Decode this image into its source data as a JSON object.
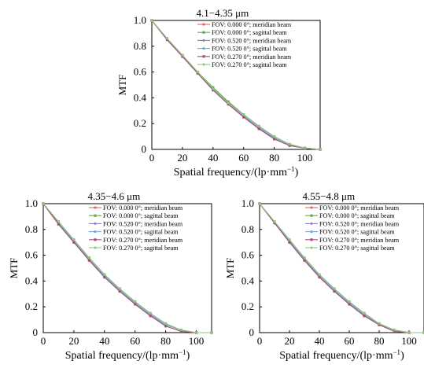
{
  "colors": {
    "series": [
      "#e06666",
      "#6aa84f",
      "#8e7cc3",
      "#6fa8dc",
      "#a64d79",
      "#93c47d"
    ]
  },
  "chart_data": [
    {
      "type": "line",
      "title": "4.1−4.35 μm",
      "xlabel": "Spatial frequency/(lp·mm",
      "xlabel_sup": "−1",
      "xlabel_close": ")",
      "ylabel": "MTF",
      "xlim": [
        0,
        110
      ],
      "ylim": [
        0,
        1.0
      ],
      "xticks": [
        0,
        20,
        40,
        60,
        80,
        100
      ],
      "yticks": [
        0,
        0.2,
        0.4,
        0.6,
        0.8,
        1.0
      ],
      "ytick_labels": [
        "0",
        "0.2",
        "0.4",
        "0.6",
        "0.8",
        "1.0"
      ],
      "legend_position": "top-right",
      "x": [
        0,
        10,
        20,
        30,
        40,
        50,
        60,
        70,
        80,
        90,
        100,
        110
      ],
      "series": [
        {
          "name": "FOV: 0.000 0°; meridian beam",
          "values": [
            1.0,
            0.86,
            0.73,
            0.6,
            0.47,
            0.36,
            0.26,
            0.17,
            0.09,
            0.03,
            0.01,
            0.0
          ]
        },
        {
          "name": "FOV: 0.000 0°; sagittal beam",
          "values": [
            1.0,
            0.86,
            0.73,
            0.6,
            0.48,
            0.37,
            0.27,
            0.18,
            0.1,
            0.04,
            0.01,
            0.0
          ]
        },
        {
          "name": "FOV: 0.520 0°; meridian beam",
          "values": [
            1.0,
            0.85,
            0.72,
            0.59,
            0.46,
            0.35,
            0.25,
            0.16,
            0.09,
            0.03,
            0.01,
            0.0
          ]
        },
        {
          "name": "FOV: 0.520 0°; sagittal beam",
          "values": [
            1.0,
            0.86,
            0.72,
            0.59,
            0.47,
            0.36,
            0.26,
            0.17,
            0.09,
            0.03,
            0.01,
            0.0
          ]
        },
        {
          "name": "FOV: 0.270 0°; meridian beam",
          "values": [
            1.0,
            0.85,
            0.72,
            0.59,
            0.46,
            0.35,
            0.25,
            0.16,
            0.08,
            0.03,
            0.01,
            0.0
          ]
        },
        {
          "name": "FOV: 0.270 0°; sagittal beam",
          "values": [
            1.0,
            0.86,
            0.73,
            0.6,
            0.47,
            0.36,
            0.27,
            0.18,
            0.1,
            0.04,
            0.01,
            0.0
          ]
        }
      ]
    },
    {
      "type": "line",
      "title": "4.35−4.6 μm",
      "xlabel": "Spatial frequency/(lp·mm",
      "xlabel_sup": "−1",
      "xlabel_close": ")",
      "ylabel": "MTF",
      "xlim": [
        0,
        110
      ],
      "ylim": [
        0,
        1.0
      ],
      "xticks": [
        0,
        20,
        40,
        60,
        80,
        100
      ],
      "yticks": [
        0,
        0.2,
        0.4,
        0.6,
        0.8,
        1.0
      ],
      "ytick_labels": [
        "0",
        "0.2",
        "0.4",
        "0.6",
        "0.8",
        "1.0"
      ],
      "legend_position": "top-right",
      "x": [
        0,
        10,
        20,
        30,
        40,
        50,
        60,
        70,
        80,
        90,
        100,
        110
      ],
      "series": [
        {
          "name": "FOV: 0.000 0°; meridian beam",
          "values": [
            1.0,
            0.85,
            0.71,
            0.57,
            0.44,
            0.33,
            0.23,
            0.14,
            0.06,
            0.02,
            0.0,
            0.0
          ]
        },
        {
          "name": "FOV: 0.000 0°; sagittal beam",
          "values": [
            1.0,
            0.86,
            0.72,
            0.58,
            0.45,
            0.34,
            0.24,
            0.15,
            0.07,
            0.02,
            0.0,
            0.0
          ]
        },
        {
          "name": "FOV: 0.520 0°; meridian beam",
          "values": [
            1.0,
            0.84,
            0.7,
            0.56,
            0.43,
            0.32,
            0.22,
            0.13,
            0.06,
            0.02,
            0.0,
            0.0
          ]
        },
        {
          "name": "FOV: 0.520 0°; sagittal beam",
          "values": [
            1.0,
            0.85,
            0.71,
            0.57,
            0.44,
            0.33,
            0.23,
            0.14,
            0.06,
            0.02,
            0.0,
            0.0
          ]
        },
        {
          "name": "FOV: 0.270 0°; meridian beam",
          "values": [
            1.0,
            0.84,
            0.7,
            0.56,
            0.43,
            0.32,
            0.22,
            0.13,
            0.05,
            0.01,
            0.0,
            0.0
          ]
        },
        {
          "name": "FOV: 0.270 0°; sagittal beam",
          "values": [
            1.0,
            0.86,
            0.72,
            0.58,
            0.45,
            0.34,
            0.24,
            0.15,
            0.07,
            0.02,
            0.0,
            0.0
          ]
        }
      ]
    },
    {
      "type": "line",
      "title": "4.55−4.8 μm",
      "xlabel": "Spatial frequency/(lp·mm",
      "xlabel_sup": "−1",
      "xlabel_close": ")",
      "ylabel": "MTF",
      "xlim": [
        0,
        110
      ],
      "ylim": [
        0,
        1.0
      ],
      "xticks": [
        0,
        20,
        40,
        60,
        80,
        100
      ],
      "yticks": [
        0,
        0.2,
        0.4,
        0.6,
        0.8,
        1.0
      ],
      "ytick_labels": [
        "0",
        "0.2",
        "0.4",
        "0.6",
        "0.8",
        "1.0"
      ],
      "legend_position": "top-right",
      "x": [
        0,
        10,
        20,
        30,
        40,
        50,
        60,
        70,
        80,
        90,
        100,
        110
      ],
      "series": [
        {
          "name": "FOV: 0.000 0°; meridian beam",
          "values": [
            1.0,
            0.85,
            0.71,
            0.57,
            0.44,
            0.33,
            0.23,
            0.14,
            0.07,
            0.02,
            0.0,
            0.0
          ]
        },
        {
          "name": "FOV: 0.000 0°; sagittal beam",
          "values": [
            1.0,
            0.86,
            0.72,
            0.58,
            0.45,
            0.34,
            0.24,
            0.15,
            0.07,
            0.02,
            0.0,
            0.0
          ]
        },
        {
          "name": "FOV: 0.520 0°; meridian beam",
          "values": [
            1.0,
            0.85,
            0.7,
            0.56,
            0.43,
            0.32,
            0.22,
            0.13,
            0.06,
            0.02,
            0.0,
            0.0
          ]
        },
        {
          "name": "FOV: 0.520 0°; sagittal beam",
          "values": [
            1.0,
            0.85,
            0.71,
            0.57,
            0.44,
            0.33,
            0.23,
            0.14,
            0.06,
            0.02,
            0.0,
            0.0
          ]
        },
        {
          "name": "FOV: 0.270 0°; meridian beam",
          "values": [
            1.0,
            0.85,
            0.7,
            0.56,
            0.43,
            0.32,
            0.22,
            0.13,
            0.06,
            0.01,
            0.0,
            0.0
          ]
        },
        {
          "name": "FOV: 0.270 0°; sagittal beam",
          "values": [
            1.0,
            0.86,
            0.72,
            0.58,
            0.45,
            0.34,
            0.24,
            0.15,
            0.07,
            0.02,
            0.0,
            0.0
          ]
        }
      ]
    }
  ]
}
